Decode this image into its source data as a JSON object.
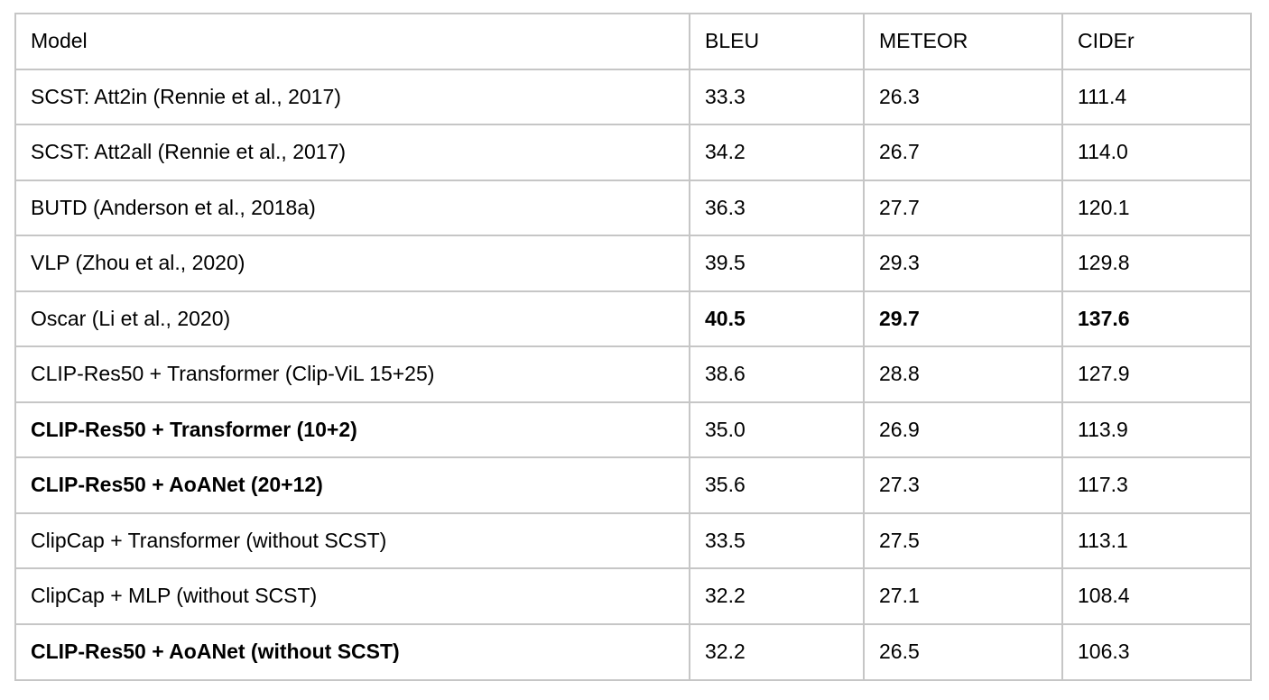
{
  "table": {
    "headers": [
      "Model",
      "BLEU",
      "METEOR",
      "CIDEr"
    ],
    "rows": [
      {
        "model": "SCST: Att2in (Rennie et al., 2017)",
        "bleu": "33.3",
        "meteor": "26.3",
        "cider": "111.4"
      },
      {
        "model": "SCST: Att2all (Rennie et al., 2017)",
        "bleu": "34.2",
        "meteor": "26.7",
        "cider": "114.0"
      },
      {
        "model": "BUTD (Anderson et al., 2018a)",
        "bleu": "36.3",
        "meteor": "27.7",
        "cider": "120.1"
      },
      {
        "model": "VLP (Zhou et al., 2020)",
        "bleu": "39.5",
        "meteor": "29.3",
        "cider": "129.8"
      },
      {
        "model": "Oscar (Li et al., 2020)",
        "bleu": "40.5",
        "meteor": "29.7",
        "cider": "137.6"
      },
      {
        "model": "CLIP-Res50 + Transformer (Clip-ViL 15+25)",
        "bleu": "38.6",
        "meteor": "28.8",
        "cider": "127.9"
      },
      {
        "model": "CLIP-Res50 + Transformer (10+2)",
        "bleu": "35.0",
        "meteor": "26.9",
        "cider": "113.9"
      },
      {
        "model": "CLIP-Res50 + AoANet (20+12)",
        "bleu": "35.6",
        "meteor": "27.3",
        "cider": "117.3"
      },
      {
        "model": "ClipCap + Transformer (without SCST)",
        "bleu": "33.5",
        "meteor": "27.5",
        "cider": "113.1"
      },
      {
        "model": "ClipCap + MLP (without SCST)",
        "bleu": "32.2",
        "meteor": "27.1",
        "cider": "108.4"
      },
      {
        "model": "CLIP-Res50 + AoANet (without SCST)",
        "bleu": "32.2",
        "meteor": "26.5",
        "cider": "106.3"
      }
    ]
  }
}
